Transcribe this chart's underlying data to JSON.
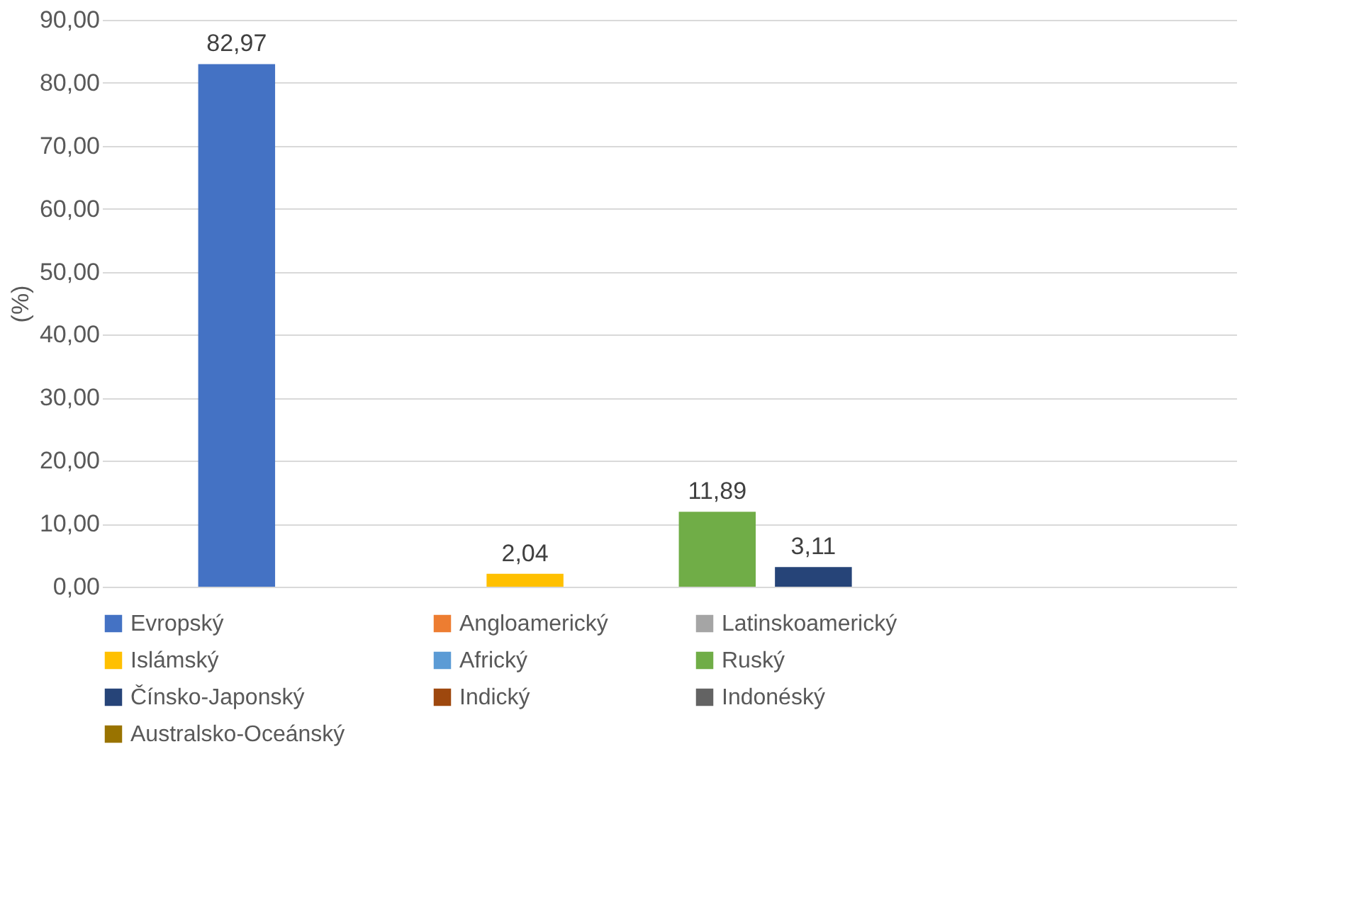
{
  "chart_data": {
    "type": "bar",
    "ylabel": "(%)",
    "categories": [
      null
    ],
    "series": [
      {
        "name": "Evropský",
        "color": "#4472c4",
        "values": [
          82.97
        ],
        "value_labels": [
          "82,97"
        ]
      },
      {
        "name": "Angloamerický",
        "color": "#ed7d31",
        "values": [
          0
        ],
        "value_labels": [
          null
        ]
      },
      {
        "name": "Latinskoamerický",
        "color": "#a5a5a5",
        "values": [
          0
        ],
        "value_labels": [
          null
        ]
      },
      {
        "name": "Islámský",
        "color": "#ffc000",
        "values": [
          2.04
        ],
        "value_labels": [
          "2,04"
        ]
      },
      {
        "name": "Africký",
        "color": "#5b9bd5",
        "values": [
          0
        ],
        "value_labels": [
          null
        ]
      },
      {
        "name": "Ruský",
        "color": "#70ad47",
        "values": [
          11.89
        ],
        "value_labels": [
          "11,89"
        ]
      },
      {
        "name": "Čínsko-Japonský",
        "color": "#264478",
        "values": [
          3.11
        ],
        "value_labels": [
          "3,11"
        ]
      },
      {
        "name": "Indický",
        "color": "#9e480e",
        "values": [
          0
        ],
        "value_labels": [
          null
        ]
      },
      {
        "name": "Indonéský",
        "color": "#636363",
        "values": [
          0
        ],
        "value_labels": [
          null
        ]
      },
      {
        "name": "Australsko-Oceánský",
        "color": "#997300",
        "values": [
          0
        ],
        "value_labels": [
          null
        ]
      }
    ],
    "ylim": [
      0,
      90
    ],
    "yticks": [
      {
        "value": 0,
        "label": "0,00"
      },
      {
        "value": 10,
        "label": "10,00"
      },
      {
        "value": 20,
        "label": "20,00"
      },
      {
        "value": 30,
        "label": "30,00"
      },
      {
        "value": 40,
        "label": "40,00"
      },
      {
        "value": 50,
        "label": "50,00"
      },
      {
        "value": 60,
        "label": "60,00"
      },
      {
        "value": 70,
        "label": "70,00"
      },
      {
        "value": 80,
        "label": "80,00"
      },
      {
        "value": 90,
        "label": "90,00"
      }
    ],
    "grid": "y",
    "legend": "bottom"
  }
}
